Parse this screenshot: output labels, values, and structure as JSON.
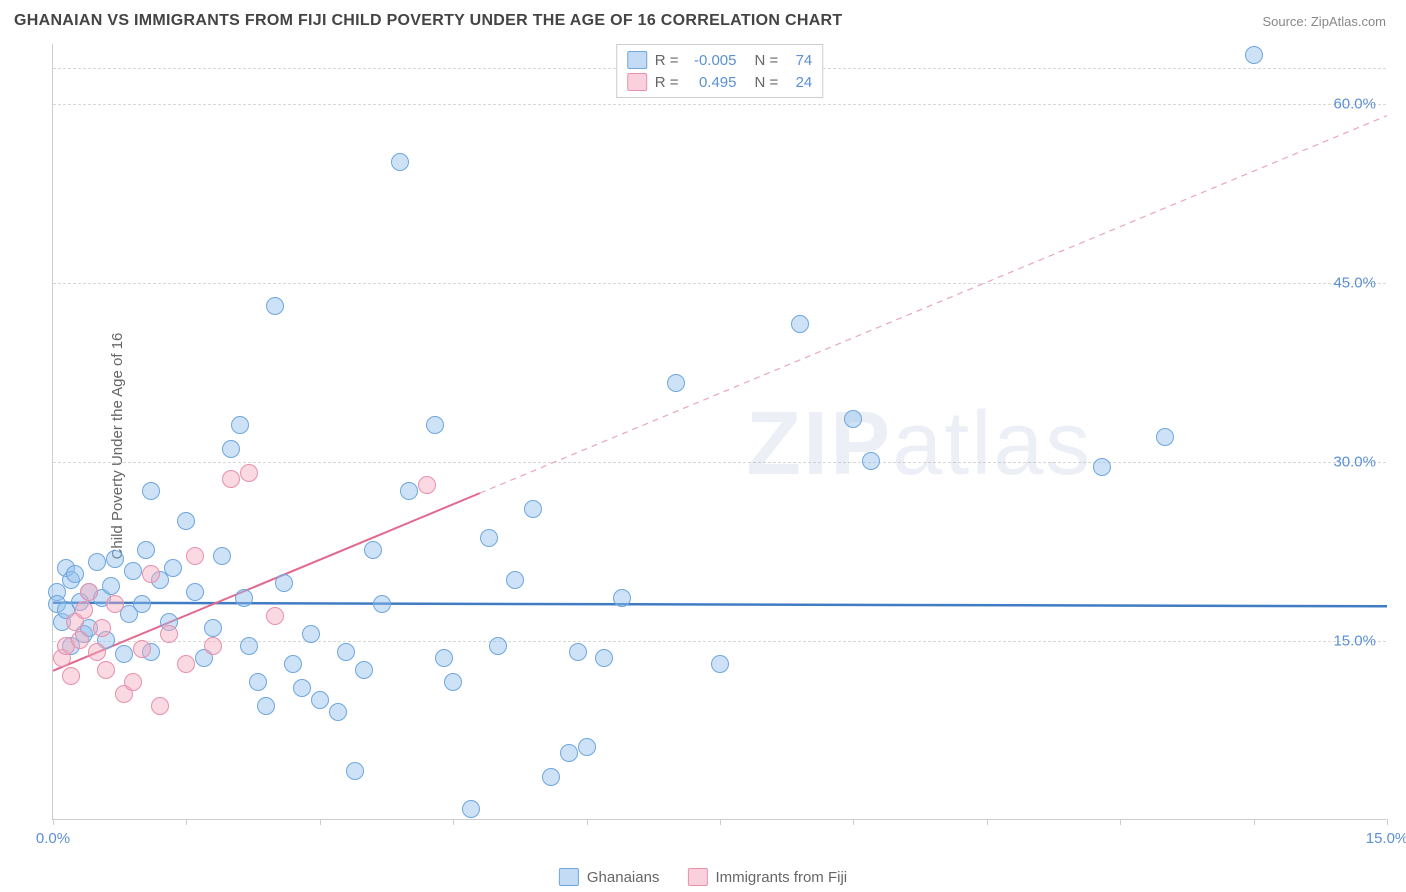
{
  "title": "GHANAIAN VS IMMIGRANTS FROM FIJI CHILD POVERTY UNDER THE AGE OF 16 CORRELATION CHART",
  "source": "Source: ZipAtlas.com",
  "ylabel": "Child Poverty Under the Age of 16",
  "watermark_bold": "ZIP",
  "watermark_thin": "atlas",
  "chart": {
    "type": "scatter",
    "background_color": "#ffffff",
    "grid_color": "#d8d8d8",
    "axis_color": "#cccccc",
    "xlim": [
      0,
      15
    ],
    "ylim": [
      0,
      65
    ],
    "xticks": [
      0,
      1.5,
      3.0,
      4.5,
      6.0,
      7.5,
      9.0,
      10.5,
      12.0,
      13.5,
      15.0
    ],
    "xtick_labels": {
      "0": "0.0%",
      "15": "15.0%"
    },
    "yticks": [
      15,
      30,
      45,
      60
    ],
    "ytick_labels": [
      "15.0%",
      "30.0%",
      "45.0%",
      "60.0%"
    ],
    "marker_radius": 9,
    "series": [
      {
        "name": "Ghanaians",
        "color_fill": "rgba(145,190,235,0.45)",
        "color_stroke": "#6fa6de",
        "R": "-0.005",
        "N": "74",
        "trend": {
          "slope": -0.02,
          "intercept": 18.2,
          "x0": 0,
          "x1": 15,
          "color": "#3f7cc4",
          "width": 2.5,
          "dash": "none"
        },
        "points": [
          [
            0.05,
            19.0
          ],
          [
            0.05,
            18.0
          ],
          [
            0.1,
            16.5
          ],
          [
            0.15,
            21.0
          ],
          [
            0.15,
            17.5
          ],
          [
            0.2,
            20.0
          ],
          [
            0.2,
            14.5
          ],
          [
            0.25,
            20.5
          ],
          [
            0.3,
            18.2
          ],
          [
            0.35,
            15.5
          ],
          [
            0.4,
            16.0
          ],
          [
            0.4,
            19.0
          ],
          [
            0.5,
            21.5
          ],
          [
            0.55,
            18.5
          ],
          [
            0.6,
            15.0
          ],
          [
            0.65,
            19.5
          ],
          [
            0.7,
            21.8
          ],
          [
            0.8,
            13.8
          ],
          [
            0.85,
            17.2
          ],
          [
            0.9,
            20.8
          ],
          [
            1.0,
            18.0
          ],
          [
            1.05,
            22.5
          ],
          [
            1.1,
            27.5
          ],
          [
            1.1,
            14.0
          ],
          [
            1.2,
            20.0
          ],
          [
            1.3,
            16.5
          ],
          [
            1.35,
            21.0
          ],
          [
            1.5,
            25.0
          ],
          [
            1.6,
            19.0
          ],
          [
            1.7,
            13.5
          ],
          [
            1.8,
            16.0
          ],
          [
            1.9,
            22.0
          ],
          [
            2.0,
            31.0
          ],
          [
            2.1,
            33.0
          ],
          [
            2.15,
            18.5
          ],
          [
            2.2,
            14.5
          ],
          [
            2.3,
            11.5
          ],
          [
            2.4,
            9.5
          ],
          [
            2.5,
            43.0
          ],
          [
            2.6,
            19.8
          ],
          [
            2.7,
            13.0
          ],
          [
            2.8,
            11.0
          ],
          [
            2.9,
            15.5
          ],
          [
            3.0,
            10.0
          ],
          [
            3.2,
            9.0
          ],
          [
            3.3,
            14.0
          ],
          [
            3.4,
            4.0
          ],
          [
            3.5,
            12.5
          ],
          [
            3.6,
            22.5
          ],
          [
            3.7,
            18.0
          ],
          [
            3.9,
            55.0
          ],
          [
            4.0,
            27.5
          ],
          [
            4.3,
            33.0
          ],
          [
            4.4,
            13.5
          ],
          [
            4.5,
            11.5
          ],
          [
            4.7,
            0.8
          ],
          [
            4.9,
            23.5
          ],
          [
            5.0,
            14.5
          ],
          [
            5.2,
            20.0
          ],
          [
            5.4,
            26.0
          ],
          [
            5.6,
            3.5
          ],
          [
            5.8,
            5.5
          ],
          [
            5.9,
            14.0
          ],
          [
            6.0,
            6.0
          ],
          [
            6.2,
            13.5
          ],
          [
            6.4,
            18.5
          ],
          [
            7.0,
            36.5
          ],
          [
            7.5,
            13.0
          ],
          [
            8.4,
            41.5
          ],
          [
            9.0,
            33.5
          ],
          [
            9.2,
            30.0
          ],
          [
            11.8,
            29.5
          ],
          [
            12.5,
            32.0
          ],
          [
            13.5,
            64.0
          ]
        ]
      },
      {
        "name": "Immigrants from Fiji",
        "color_fill": "rgba(244,170,190,0.45)",
        "color_stroke": "#e890ac",
        "R": "0.495",
        "N": "24",
        "trend": {
          "slope": 3.1,
          "intercept": 12.5,
          "x0": 0,
          "x1": 4.8,
          "color": "#e26a8f",
          "width": 2,
          "dash": "none"
        },
        "trend_ext": {
          "x0": 4.8,
          "x1": 15,
          "color": "#eaa6ba",
          "width": 1.2,
          "dash": "6,5"
        },
        "points": [
          [
            0.1,
            13.5
          ],
          [
            0.15,
            14.5
          ],
          [
            0.2,
            12.0
          ],
          [
            0.25,
            16.5
          ],
          [
            0.3,
            15.0
          ],
          [
            0.35,
            17.5
          ],
          [
            0.4,
            19.0
          ],
          [
            0.5,
            14.0
          ],
          [
            0.55,
            16.0
          ],
          [
            0.6,
            12.5
          ],
          [
            0.7,
            18.0
          ],
          [
            0.8,
            10.5
          ],
          [
            0.9,
            11.5
          ],
          [
            1.0,
            14.2
          ],
          [
            1.1,
            20.5
          ],
          [
            1.2,
            9.5
          ],
          [
            1.3,
            15.5
          ],
          [
            1.5,
            13.0
          ],
          [
            1.6,
            22.0
          ],
          [
            1.8,
            14.5
          ],
          [
            2.0,
            28.5
          ],
          [
            2.2,
            29.0
          ],
          [
            2.5,
            17.0
          ],
          [
            4.2,
            28.0
          ]
        ]
      }
    ]
  },
  "legend_bottom": [
    {
      "label": "Ghanaians",
      "class": "blue"
    },
    {
      "label": "Immigrants from Fiji",
      "class": "pink"
    }
  ]
}
